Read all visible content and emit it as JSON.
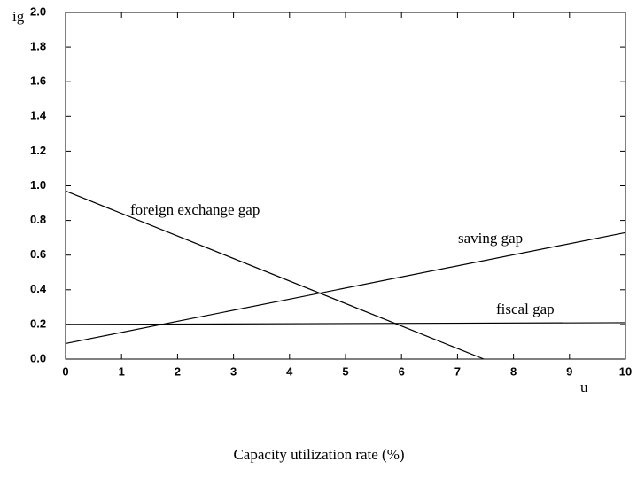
{
  "chart_data": {
    "type": "line",
    "y_label": "ig",
    "x_label": "u",
    "x_title": "Capacity utilization rate (%)",
    "series": [
      {
        "name": "foreign exchange gap",
        "color": "#000000",
        "x": [
          0,
          7.47
        ],
        "values": [
          0.97,
          0
        ]
      },
      {
        "name": "saving gap",
        "color": "#000000",
        "x": [
          0,
          10
        ],
        "values": [
          0.09,
          0.73
        ]
      },
      {
        "name": "fiscal gap",
        "color": "#000000",
        "x": [
          0,
          10
        ],
        "values": [
          0.2,
          0.21
        ]
      }
    ],
    "xlim": [
      0,
      10
    ],
    "xticks": [
      0,
      1,
      2,
      3,
      4,
      5,
      6,
      7,
      8,
      9,
      10
    ],
    "ylim": [
      0,
      2
    ],
    "yticks": [
      {
        "value": 0,
        "label": "0.0"
      },
      0.2,
      0.4,
      0.6,
      0.8,
      {
        "value": 1,
        "label": "1.0"
      },
      1.2,
      1.4,
      1.6,
      1.8,
      {
        "value": 2,
        "label": "2.0"
      }
    ]
  }
}
